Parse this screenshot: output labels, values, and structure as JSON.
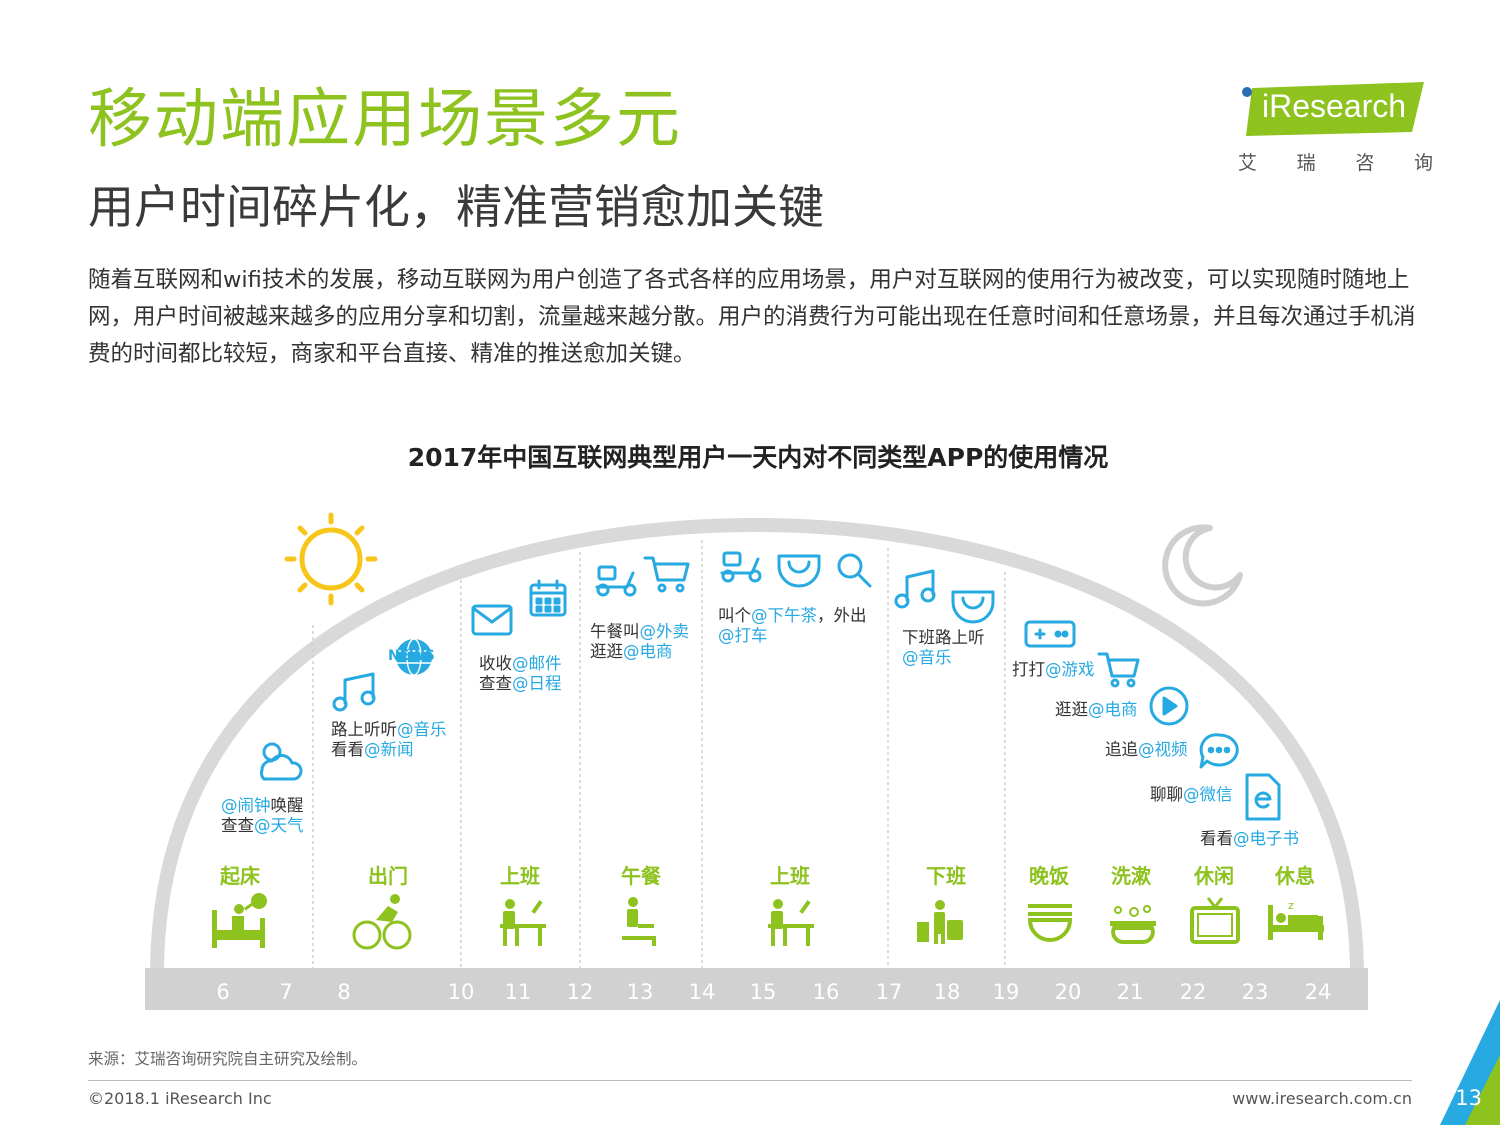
{
  "header": {
    "title": "移动端应用场景多元",
    "subtitle": "用户时间碎片化，精准营销愈加关键",
    "intro": "随着互联网和wifi技术的发展，移动互联网为用户创造了各式各样的应用场景，用户对互联网的使用行为被改变，可以实现随时随地上网，用户时间被越来越多的应用分享和切割，流量越来越分散。用户的消费行为可能出现在任意时间和任意场景，并且每次通过手机消费的时间都比较短，商家和平台直接、精准的推送愈加关键。"
  },
  "logo": {
    "name": "iResearch",
    "cn": [
      "艾",
      "瑞",
      "咨",
      "询"
    ]
  },
  "chart": {
    "title": "2017年中国互联网典型用户一天内对不同类型APP的使用情况",
    "hours": [
      "6",
      "7",
      "8",
      "10",
      "11",
      "12",
      "13",
      "14",
      "15",
      "16",
      "17",
      "18",
      "19",
      "20",
      "21",
      "22",
      "23",
      "24"
    ],
    "activities": [
      "起床",
      "出门",
      "上班",
      "午餐",
      "上班",
      "下班",
      "晚饭",
      "洗漱",
      "休闲",
      "休息"
    ],
    "labels": {
      "wake": [
        {
          "a": "@闹钟",
          "b": "唤醒"
        },
        {
          "a": "查查",
          "b": "@天气"
        }
      ],
      "out": [
        {
          "a": "路上听听",
          "b": "@音乐"
        },
        {
          "a": "看看",
          "b": "@新闻"
        }
      ],
      "work1": [
        {
          "a": "收收",
          "b": "@邮件"
        },
        {
          "a": "查查",
          "b": "@日程"
        }
      ],
      "lunch": [
        {
          "a": "午餐叫",
          "b": "@外卖"
        },
        {
          "a": "逛逛",
          "b": "@电商"
        }
      ],
      "work2": [
        {
          "a": "叫个",
          "b": "@下午茶",
          "c": "，外出"
        },
        {
          "a": "",
          "b": "@打车"
        }
      ],
      "off": [
        {
          "a": "下班路上听",
          "b": ""
        },
        {
          "a": "",
          "b": "@音乐"
        }
      ],
      "evening": [
        {
          "a": "打打",
          "b": "@游戏"
        },
        {
          "a": "逛逛",
          "b": "@电商"
        },
        {
          "a": "追追",
          "b": "@视频"
        },
        {
          "a": "聊聊",
          "b": "@微信"
        },
        {
          "a": "看看",
          "b": "@电子书"
        }
      ],
      "news_badge": "NEWS"
    },
    "colors": {
      "green": "#8dc21f",
      "blue": "#27a9e1",
      "yellow": "#f7c61b",
      "arc": "#d7d7d7"
    }
  },
  "footer": {
    "source": "来源：艾瑞咨询研究院自主研究及绘制。",
    "copyright": "©2018.1 iResearch Inc",
    "url": "www.iresearch.com.cn",
    "page": "13"
  }
}
